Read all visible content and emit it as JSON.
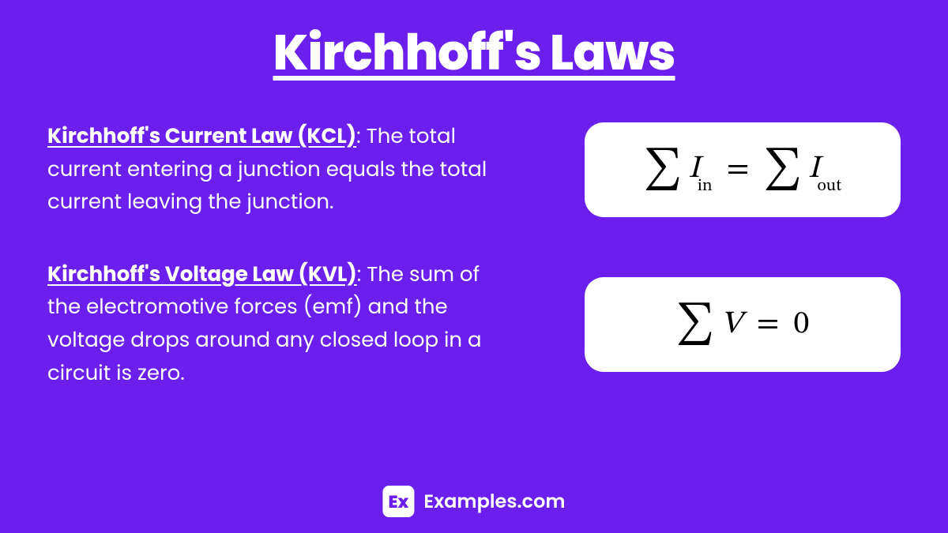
{
  "title": " Kirchhoff's Laws",
  "laws": [
    {
      "name": "Kirchhoff's Current Law (KCL)",
      "description": ": The total current entering a junction equals the total current leaving the junction.",
      "formula": {
        "type": "kcl",
        "left_var": "I",
        "left_sub": "in",
        "right_var": "I",
        "right_sub": "out"
      }
    },
    {
      "name": "Kirchhoff's Voltage Law (KVL)",
      "description": ": The sum of the electromotive forces (emf) and the voltage drops around any closed loop in a circuit is zero.",
      "formula": {
        "type": "kvl",
        "var": "V",
        "equals": "0"
      }
    }
  ],
  "footer": {
    "icon_text": "Ex",
    "label": "Examples.com"
  },
  "styling": {
    "background_color": "#6a1fec",
    "text_color": "#ffffff",
    "formula_box_bg": "#ffffff",
    "formula_text_color": "#000000",
    "formula_box_radius": 24,
    "title_fontsize": 62,
    "body_fontsize": 26,
    "formula_fontsize": 40,
    "sigma_fontsize": 52,
    "footer_fontsize": 24,
    "footer_icon_bg": "#ffffff",
    "footer_icon_color": "#6a1fec"
  }
}
